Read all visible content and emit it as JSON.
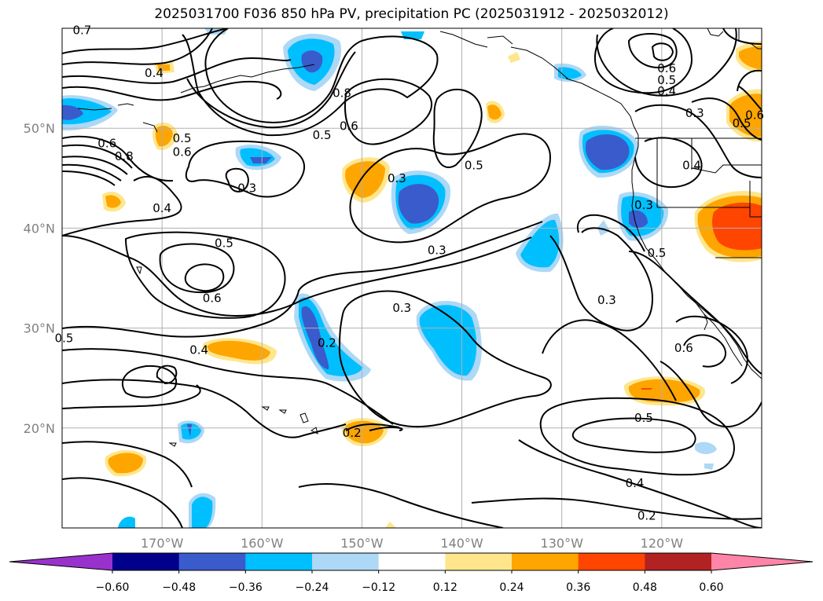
{
  "title": "2025031700 F036 850 hPa PV, precipitation PC (2025031912 - 2025032012)",
  "map": {
    "lat_ticks": [
      {
        "label": "50°N",
        "lat": 50
      },
      {
        "label": "40°N",
        "lat": 40
      },
      {
        "label": "30°N",
        "lat": 30
      },
      {
        "label": "20°N",
        "lat": 20
      }
    ],
    "lon_ticks": [
      {
        "label": "170°W",
        "lon": -170
      },
      {
        "label": "160°W",
        "lon": -160
      },
      {
        "label": "150°W",
        "lon": -150
      },
      {
        "label": "140°W",
        "lon": -140
      },
      {
        "label": "130°W",
        "lon": -130
      },
      {
        "label": "120°W",
        "lon": -120
      }
    ],
    "extent": {
      "lon_min": -180,
      "lon_max": -110,
      "lat_min": 10,
      "lat_max": 60
    },
    "grid": true,
    "contour_labels": [
      {
        "text": "0.7",
        "lon": -178.0,
        "lat": 59.8
      },
      {
        "text": "0.4",
        "lon": -170.8,
        "lat": 55.5
      },
      {
        "text": "0.5",
        "lon": -168.0,
        "lat": 49.0
      },
      {
        "text": "0.6",
        "lon": -168.0,
        "lat": 47.6
      },
      {
        "text": "0.8",
        "lon": -173.8,
        "lat": 47.2
      },
      {
        "text": "0.6",
        "lon": -175.5,
        "lat": 48.5
      },
      {
        "text": "0.4",
        "lon": -170.0,
        "lat": 42.0
      },
      {
        "text": "0.3",
        "lon": -161.5,
        "lat": 44.0
      },
      {
        "text": "0.5",
        "lon": -154.0,
        "lat": 49.3
      },
      {
        "text": "0.6",
        "lon": -151.3,
        "lat": 50.2
      },
      {
        "text": "0.8",
        "lon": -152.0,
        "lat": 53.5
      },
      {
        "text": "0.3",
        "lon": -146.5,
        "lat": 45.0
      },
      {
        "text": "0.5",
        "lon": -138.8,
        "lat": 46.3
      },
      {
        "text": "0.3",
        "lon": -142.5,
        "lat": 37.8
      },
      {
        "text": "0.5",
        "lon": -163.8,
        "lat": 38.5
      },
      {
        "text": "0.6",
        "lon": -165.0,
        "lat": 33.0
      },
      {
        "text": "0.3",
        "lon": -146.0,
        "lat": 32.0
      },
      {
        "text": "0.2",
        "lon": -153.5,
        "lat": 28.5
      },
      {
        "text": "0.4",
        "lon": -166.3,
        "lat": 27.8
      },
      {
        "text": "0.2",
        "lon": -151.0,
        "lat": 19.5
      },
      {
        "text": "0.3",
        "lon": -125.5,
        "lat": 32.8
      },
      {
        "text": "0.5",
        "lon": -120.5,
        "lat": 37.5
      },
      {
        "text": "0.6",
        "lon": -117.8,
        "lat": 28.0
      },
      {
        "text": "0.3",
        "lon": -121.8,
        "lat": 42.3
      },
      {
        "text": "0.4",
        "lon": -117.0,
        "lat": 46.3
      },
      {
        "text": "0.3",
        "lon": -116.7,
        "lat": 51.5
      },
      {
        "text": "0.6",
        "lon": -119.5,
        "lat": 56.0
      },
      {
        "text": "0.5",
        "lon": -119.5,
        "lat": 54.8
      },
      {
        "text": "0.4",
        "lon": -119.5,
        "lat": 53.7
      },
      {
        "text": "0.6",
        "lon": -110.7,
        "lat": 51.3
      },
      {
        "text": "0.5",
        "lon": -112.0,
        "lat": 50.5
      },
      {
        "text": "0.5",
        "lon": -121.8,
        "lat": 21.0
      },
      {
        "text": "0.4",
        "lon": -122.7,
        "lat": 14.5
      },
      {
        "text": "0.2",
        "lon": -121.5,
        "lat": 11.2
      },
      {
        "text": "0.5",
        "lon": -179.8,
        "lat": 29.0
      }
    ]
  },
  "colorbar": {
    "ticks": [
      "−0.60",
      "−0.48",
      "−0.36",
      "−0.24",
      "−0.12",
      "0.12",
      "0.24",
      "0.36",
      "0.48",
      "0.60"
    ],
    "colors": [
      "#9932cc",
      "#00008b",
      "#3a5bcc",
      "#00bfff",
      "#add8f6",
      "#ffffff",
      "#ffe68c",
      "#ffa500",
      "#ff4500",
      "#b22222",
      "#ff85a8",
      "#ff85a8"
    ]
  },
  "colors": {
    "orange": "#ffa500",
    "light_yellow": "#ffe68c",
    "red_orange": "#ff4500",
    "cyan": "#00bfff",
    "light_blue": "#add8f6",
    "royal_blue": "#3a5bcc"
  }
}
